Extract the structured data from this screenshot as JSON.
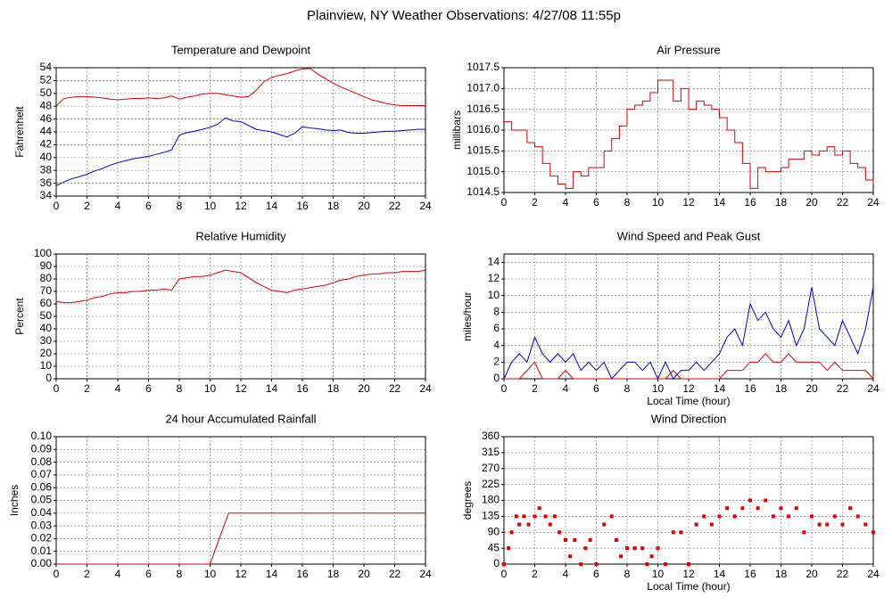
{
  "title": "Plainview, NY Weather Observations: 4/27/08 11:55p",
  "chart_data": [
    {
      "type": "line",
      "title": "Temperature and Dewpoint",
      "ylabel": "Fahrenheit",
      "x": [
        0,
        0.5,
        1,
        1.5,
        2,
        2.5,
        3,
        3.5,
        4,
        4.5,
        5,
        5.5,
        6,
        6.5,
        7,
        7.5,
        8,
        8.5,
        9,
        9.5,
        10,
        10.5,
        11,
        11.5,
        12,
        12.5,
        13,
        13.5,
        14,
        14.5,
        15,
        15.5,
        16,
        16.5,
        17,
        17.5,
        18,
        18.5,
        19,
        19.5,
        20,
        20.5,
        21,
        21.5,
        22,
        22.5,
        23,
        23.5,
        24
      ],
      "series": [
        {
          "color": "#dd0000",
          "values": [
            48,
            49.2,
            49.4,
            49.5,
            49.5,
            49.4,
            49.3,
            49.1,
            49.0,
            49.1,
            49.2,
            49.2,
            49.3,
            49.2,
            49.3,
            49.6,
            49.1,
            49.4,
            49.6,
            49.9,
            50.0,
            50.0,
            49.8,
            49.6,
            49.4,
            49.5,
            50.5,
            51.8,
            52.5,
            52.8,
            53.1,
            53.5,
            53.8,
            53.9,
            53.0,
            52.3,
            51.6,
            51.0,
            50.5,
            50.0,
            49.5,
            49.0,
            48.7,
            48.4,
            48.2,
            48.1,
            48.1,
            48.1,
            48.1
          ]
        },
        {
          "color": "#0000cc",
          "values": [
            35.6,
            36.2,
            36.7,
            37.0,
            37.4,
            37.9,
            38.3,
            38.8,
            39.2,
            39.5,
            39.8,
            40.0,
            40.2,
            40.5,
            40.8,
            41.2,
            43.5,
            43.9,
            44.1,
            44.4,
            44.7,
            45.2,
            46.2,
            45.7,
            45.6,
            45.0,
            44.4,
            44.2,
            44.0,
            43.6,
            43.2,
            43.8,
            44.8,
            44.6,
            44.5,
            44.3,
            44.2,
            44.3,
            43.9,
            43.8,
            43.8,
            43.9,
            44.0,
            44.1,
            44.1,
            44.2,
            44.3,
            44.4,
            44.4
          ]
        }
      ],
      "xlim": [
        0,
        24
      ],
      "xticks": [
        0,
        2,
        4,
        6,
        8,
        10,
        12,
        14,
        16,
        18,
        20,
        22,
        24
      ],
      "ylim": [
        34,
        54
      ],
      "yticks": [
        34,
        36,
        38,
        40,
        42,
        44,
        46,
        48,
        50,
        52,
        54
      ],
      "grid": true
    },
    {
      "type": "line",
      "title": "Air Pressure",
      "ylabel": "millibars",
      "step": true,
      "x": [
        0,
        0.5,
        1,
        1.5,
        2,
        2.5,
        3,
        3.5,
        4,
        4.5,
        5,
        5.5,
        6,
        6.5,
        7,
        7.5,
        8,
        8.5,
        9,
        9.5,
        10,
        10.5,
        11,
        11.5,
        12,
        12.5,
        13,
        13.5,
        14,
        14.5,
        15,
        15.5,
        16,
        16.5,
        17,
        17.5,
        18,
        18.5,
        19,
        19.5,
        20,
        20.5,
        21,
        21.5,
        22,
        22.5,
        23,
        23.5,
        24
      ],
      "series": [
        {
          "color": "#dd0000",
          "values": [
            1016.2,
            1016.0,
            1016.0,
            1015.7,
            1015.6,
            1015.2,
            1014.9,
            1014.7,
            1014.6,
            1015.0,
            1014.9,
            1015.1,
            1015.1,
            1015.5,
            1015.8,
            1016.1,
            1016.5,
            1016.6,
            1016.7,
            1016.9,
            1017.2,
            1017.2,
            1016.7,
            1017.0,
            1016.5,
            1016.7,
            1016.6,
            1016.5,
            1016.3,
            1016.0,
            1015.7,
            1015.2,
            1014.6,
            1015.1,
            1015.0,
            1015.0,
            1015.1,
            1015.3,
            1015.3,
            1015.5,
            1015.4,
            1015.5,
            1015.6,
            1015.4,
            1015.5,
            1015.2,
            1015.1,
            1014.8,
            1014.7
          ]
        }
      ],
      "xlim": [
        0,
        24
      ],
      "xticks": [
        0,
        2,
        4,
        6,
        8,
        10,
        12,
        14,
        16,
        18,
        20,
        22,
        24
      ],
      "ylim": [
        1014.5,
        1017.5
      ],
      "yticks": [
        1014.5,
        {
          "value": 1015,
          "label": "1015.0"
        },
        1015.5,
        {
          "value": 1016,
          "label": "1016.0"
        },
        1016.5,
        {
          "value": 1017,
          "label": "1017.0"
        },
        1017.5
      ],
      "grid": true
    },
    {
      "type": "line",
      "title": "Relative Humidity",
      "ylabel": "Percent",
      "x": [
        0,
        0.5,
        1,
        1.5,
        2,
        2.5,
        3,
        3.5,
        4,
        4.5,
        5,
        5.5,
        6,
        6.5,
        7,
        7.5,
        8,
        8.5,
        9,
        9.5,
        10,
        10.5,
        11,
        11.5,
        12,
        12.5,
        13,
        13.5,
        14,
        14.5,
        15,
        15.5,
        16,
        16.5,
        17,
        17.5,
        18,
        18.5,
        19,
        19.5,
        20,
        20.5,
        21,
        21.5,
        22,
        22.5,
        23,
        23.5,
        24
      ],
      "series": [
        {
          "color": "#dd0000",
          "values": [
            62,
            61,
            61,
            62,
            63,
            65,
            66,
            68,
            69,
            69,
            70,
            70,
            71,
            71,
            72,
            71,
            80,
            81,
            82,
            82,
            83,
            85,
            87,
            86,
            85,
            81,
            77,
            74,
            71,
            70,
            69,
            71,
            72,
            73,
            74,
            75,
            77,
            79,
            80,
            82,
            83,
            84,
            84,
            85,
            85,
            86,
            86,
            86,
            87
          ]
        }
      ],
      "xlim": [
        0,
        24
      ],
      "xticks": [
        0,
        2,
        4,
        6,
        8,
        10,
        12,
        14,
        16,
        18,
        20,
        22,
        24
      ],
      "ylim": [
        0,
        100
      ],
      "yticks": [
        0,
        10,
        20,
        30,
        40,
        50,
        60,
        70,
        80,
        90,
        100
      ],
      "grid": true
    },
    {
      "type": "line",
      "title": "Wind Speed and Peak Gust",
      "ylabel": "miles/hour",
      "xlabel": "Local Time (hour)",
      "x": [
        0,
        0.5,
        1,
        1.5,
        2,
        2.5,
        3,
        3.5,
        4,
        4.5,
        5,
        5.5,
        6,
        6.5,
        7,
        7.5,
        8,
        8.5,
        9,
        9.5,
        10,
        10.5,
        11,
        11.5,
        12,
        12.5,
        13,
        13.5,
        14,
        14.5,
        15,
        15.5,
        16,
        16.5,
        17,
        17.5,
        18,
        18.5,
        19,
        19.5,
        20,
        20.5,
        21,
        21.5,
        22,
        22.5,
        23,
        23.5,
        24
      ],
      "series": [
        {
          "color": "#0000cc",
          "values": [
            0,
            2,
            3,
            2,
            5,
            3,
            2,
            3,
            2,
            3,
            1,
            2,
            1,
            2,
            0,
            1,
            2,
            2,
            1,
            2,
            0,
            2,
            0,
            1,
            1,
            2,
            1,
            2,
            3,
            5,
            6,
            4,
            9,
            7,
            8,
            6,
            5,
            7,
            4,
            6,
            11,
            6,
            5,
            4,
            7,
            5,
            3,
            6,
            11
          ]
        },
        {
          "color": "#dd0000",
          "values": [
            0,
            0,
            0,
            1,
            2,
            0,
            0,
            0,
            1,
            0,
            0,
            0,
            0,
            0,
            0,
            0,
            0,
            0,
            0,
            0,
            0,
            0,
            1,
            0,
            0,
            0,
            0,
            0,
            0,
            1,
            1,
            1,
            2,
            2,
            3,
            2,
            2,
            3,
            2,
            2,
            2,
            2,
            1,
            2,
            1,
            1,
            1,
            1,
            0
          ]
        }
      ],
      "xlim": [
        0,
        24
      ],
      "xticks": [
        0,
        2,
        4,
        6,
        8,
        10,
        12,
        14,
        16,
        18,
        20,
        22,
        24
      ],
      "ylim": [
        0,
        15
      ],
      "yticks": [
        0,
        2,
        4,
        6,
        8,
        10,
        12,
        14
      ],
      "grid": true
    },
    {
      "type": "line",
      "title": "24 hour Accumulated Rainfall",
      "ylabel": "Inches",
      "x": [
        0,
        10,
        10.3,
        10.6,
        10.9,
        11.2,
        24
      ],
      "series": [
        {
          "color": "#dd0000",
          "values": [
            0,
            0,
            0.01,
            0.02,
            0.03,
            0.04,
            0.04
          ]
        }
      ],
      "xlim": [
        0,
        24
      ],
      "xticks": [
        0,
        2,
        4,
        6,
        8,
        10,
        12,
        14,
        16,
        18,
        20,
        22,
        24
      ],
      "ylim": [
        0,
        0.1
      ],
      "yticks": [
        {
          "value": 0,
          "label": "0.00"
        },
        {
          "value": 0.01,
          "label": "0.01"
        },
        {
          "value": 0.02,
          "label": "0.02"
        },
        {
          "value": 0.03,
          "label": "0.03"
        },
        {
          "value": 0.04,
          "label": "0.04"
        },
        {
          "value": 0.05,
          "label": "0.05"
        },
        {
          "value": 0.06,
          "label": "0.06"
        },
        {
          "value": 0.07,
          "label": "0.07"
        },
        {
          "value": 0.08,
          "label": "0.08"
        },
        {
          "value": 0.09,
          "label": "0.09"
        },
        {
          "value": 0.1,
          "label": "0.10"
        }
      ],
      "grid": true
    },
    {
      "type": "scatter",
      "title": "Wind Direction",
      "ylabel": "degrees",
      "xlabel": "Local Time (hour)",
      "x": [
        0,
        0.3,
        0.5,
        0.8,
        1,
        1.3,
        1.6,
        2,
        2.3,
        2.7,
        3,
        3.3,
        3.6,
        4,
        4.3,
        4.6,
        5,
        5.3,
        5.6,
        6,
        6.5,
        7,
        7.3,
        7.6,
        8,
        8.5,
        9,
        9.3,
        9.6,
        10,
        10.5,
        11,
        11.5,
        12,
        12.5,
        13,
        13.5,
        14,
        14.5,
        15,
        15.5,
        16,
        16.5,
        17,
        17.5,
        18,
        18.5,
        19,
        19.5,
        20,
        20.5,
        21,
        21.5,
        22,
        22.5,
        23,
        23.5,
        24
      ],
      "series": [
        {
          "color": "#dd0000",
          "values": [
            0,
            45,
            90,
            135,
            112,
            135,
            112,
            135,
            158,
            135,
            112,
            135,
            90,
            68,
            22,
            68,
            0,
            45,
            68,
            0,
            112,
            135,
            68,
            22,
            45,
            45,
            45,
            0,
            22,
            45,
            0,
            90,
            90,
            0,
            112,
            135,
            112,
            135,
            158,
            135,
            158,
            180,
            158,
            180,
            135,
            158,
            135,
            158,
            90,
            135,
            112,
            112,
            135,
            112,
            158,
            135,
            112,
            90
          ]
        }
      ],
      "xlim": [
        0,
        24
      ],
      "xticks": [
        0,
        2,
        4,
        6,
        8,
        10,
        12,
        14,
        16,
        18,
        20,
        22,
        24
      ],
      "ylim": [
        0,
        360
      ],
      "yticks": [
        0,
        45,
        90,
        135,
        180,
        225,
        270,
        315,
        360
      ],
      "grid": true
    }
  ]
}
